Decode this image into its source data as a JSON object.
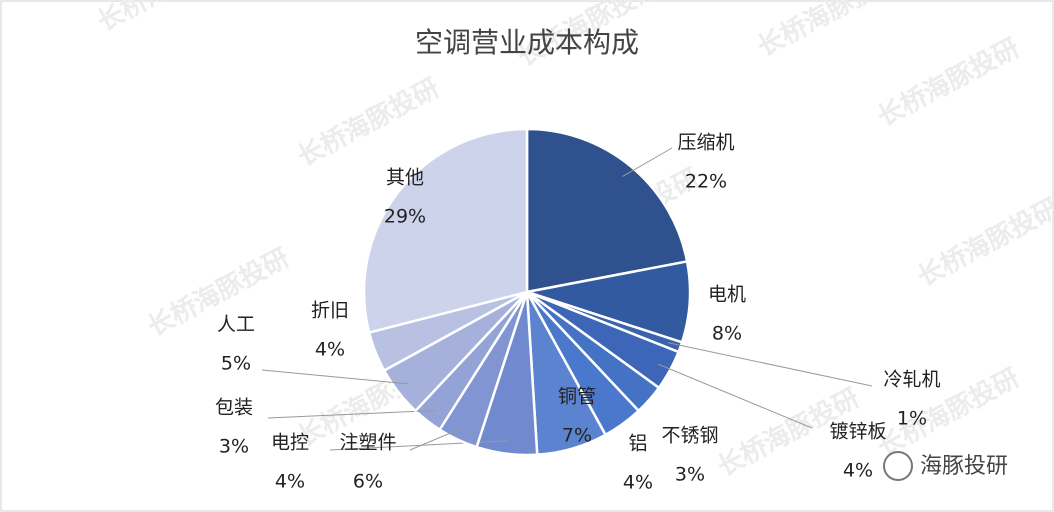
{
  "chart_data": {
    "type": "pie",
    "title": "空调营业成本构成",
    "categories": [
      "压缩机",
      "电机",
      "冷轧机",
      "镀锌板",
      "不锈钢",
      "铝",
      "铜管",
      "注塑件",
      "电控",
      "包装",
      "人工",
      "折旧",
      "其他"
    ],
    "values": [
      22,
      8,
      1,
      4,
      3,
      4,
      7,
      6,
      4,
      3,
      5,
      4,
      29
    ],
    "value_labels": [
      "22%",
      "8%",
      "1%",
      "4%",
      "3%",
      "4%",
      "7%",
      "6%",
      "4%",
      "3%",
      "5%",
      "4%",
      "29%"
    ],
    "colors": [
      "#2f528f",
      "#325aa0",
      "#3a62ad",
      "#3d66b8",
      "#4472c4",
      "#4a78cc",
      "#5b83cf",
      "#7189cf",
      "#8095d2",
      "#93a3d6",
      "#a5b1da",
      "#b8c1e1",
      "#cdd3ea"
    ],
    "watermark": "长桥海豚投研",
    "brand": "海豚投研"
  }
}
